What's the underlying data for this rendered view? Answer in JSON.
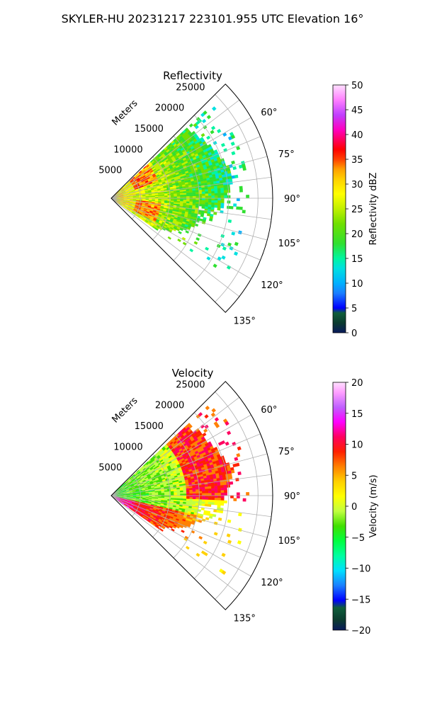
{
  "figure": {
    "suptitle": "SKYLER-HU  20231217  223101.955 UTC Elevation 16°"
  },
  "chart_data": [
    {
      "type": "heatmap",
      "title": "Reflectivity",
      "radial_label": "Meters",
      "radial_ticks": [
        5000,
        10000,
        15000,
        20000,
        25000
      ],
      "radial_tick_labels": [
        "5000",
        "10000",
        "15000",
        "20000",
        "25000"
      ],
      "rmax": 27500,
      "angle_ticks": [
        60,
        75,
        90,
        105,
        120,
        135
      ],
      "angle_tick_labels": [
        "60°",
        "75°",
        "90°",
        "105°",
        "120°",
        "135°"
      ],
      "theta_range_deg": [
        45,
        135
      ],
      "colorbar": {
        "label": "Reflectivity dBZ",
        "range": [
          0,
          50
        ],
        "ticks": [
          0,
          5,
          10,
          15,
          20,
          25,
          30,
          35,
          40,
          45,
          50
        ],
        "tick_labels": [
          "0",
          "5",
          "10",
          "15",
          "20",
          "25",
          "30",
          "35",
          "40",
          "45",
          "50"
        ]
      }
    },
    {
      "type": "heatmap",
      "title": "Velocity",
      "radial_label": "Meters",
      "radial_ticks": [
        5000,
        10000,
        15000,
        20000,
        25000
      ],
      "radial_tick_labels": [
        "5000",
        "10000",
        "15000",
        "20000",
        "25000"
      ],
      "rmax": 27500,
      "angle_ticks": [
        60,
        75,
        90,
        105,
        120,
        135
      ],
      "angle_tick_labels": [
        "60°",
        "75°",
        "90°",
        "105°",
        "120°",
        "135°"
      ],
      "theta_range_deg": [
        45,
        135
      ],
      "colorbar": {
        "label": "Velocity (m/s)",
        "range": [
          -20,
          20
        ],
        "ticks": [
          -20,
          -15,
          -10,
          -5,
          0,
          5,
          10,
          15,
          20
        ],
        "tick_labels": [
          "−20",
          "−15",
          "−10",
          "−5",
          "0",
          "5",
          "10",
          "15",
          "20"
        ]
      }
    }
  ]
}
